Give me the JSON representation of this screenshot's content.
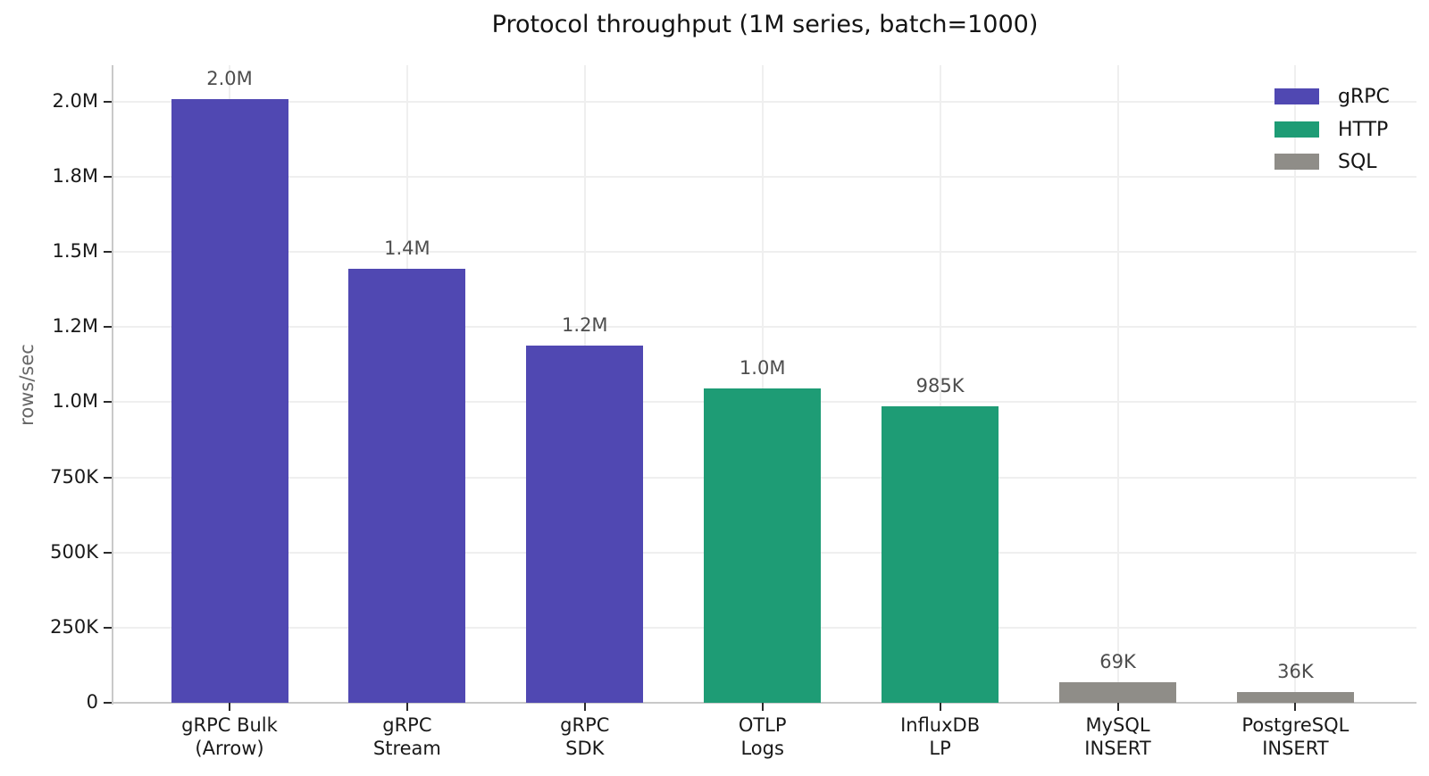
{
  "title": "Protocol throughput (1M series, batch=1000)",
  "colors": {
    "background": "#ffffff",
    "grid": "#efefef",
    "spine": "#c9c9c9",
    "tick": "#2b2b2b",
    "tick_label": "#191919",
    "value_label": "#4d4d4d",
    "axis_label": "#666666",
    "title": "#141414",
    "grpc": "#5048B2",
    "http": "#1E9C75",
    "sql": "#8F8D88"
  },
  "chart_data": {
    "type": "bar",
    "title": "Protocol throughput (1M series, batch=1000)",
    "xlabel": "",
    "ylabel": "rows/sec",
    "categories": [
      "gRPC Bulk\n(Arrow)",
      "gRPC\nStream",
      "gRPC\nSDK",
      "OTLP\nLogs",
      "InfluxDB\nLP",
      "MySQL\nINSERT",
      "PostgreSQL\nINSERT"
    ],
    "values": [
      2008000,
      1444000,
      1187000,
      1047000,
      985000,
      69000,
      36000
    ],
    "bar_value_labels": [
      "2.0M",
      "1.4M",
      "1.2M",
      "1.0M",
      "985K",
      "69K",
      "36K"
    ],
    "bar_groups": [
      "gRPC",
      "gRPC",
      "gRPC",
      "HTTP",
      "HTTP",
      "SQL",
      "SQL"
    ],
    "series": [
      {
        "name": "gRPC",
        "color": "#5048B2",
        "bars": [
          "gRPC Bulk (Arrow)",
          "gRPC Stream",
          "gRPC SDK"
        ],
        "values": [
          2008000,
          1444000,
          1187000
        ]
      },
      {
        "name": "HTTP",
        "color": "#1E9C75",
        "bars": [
          "OTLP Logs",
          "InfluxDB LP"
        ],
        "values": [
          1047000,
          985000
        ]
      },
      {
        "name": "SQL",
        "color": "#8F8D88",
        "bars": [
          "MySQL INSERT",
          "PostgreSQL INSERT"
        ],
        "values": [
          69000,
          36000
        ]
      }
    ],
    "ylim": [
      0,
      2121000
    ],
    "yticks": [
      {
        "v": 0,
        "label": "0"
      },
      {
        "v": 250000,
        "label": "250K"
      },
      {
        "v": 500000,
        "label": "500K"
      },
      {
        "v": 750000,
        "label": "750K"
      },
      {
        "v": 1000000,
        "label": "1.0M"
      },
      {
        "v": 1250000,
        "label": "1.2M"
      },
      {
        "v": 1500000,
        "label": "1.5M"
      },
      {
        "v": 1750000,
        "label": "1.8M"
      },
      {
        "v": 2000000,
        "label": "2.0M"
      }
    ],
    "grid": "both",
    "legend": {
      "position": "upper right",
      "entries": [
        {
          "label": "gRPC",
          "color": "#5048B2"
        },
        {
          "label": "HTTP",
          "color": "#1E9C75"
        },
        {
          "label": "SQL",
          "color": "#8F8D88"
        }
      ]
    }
  }
}
